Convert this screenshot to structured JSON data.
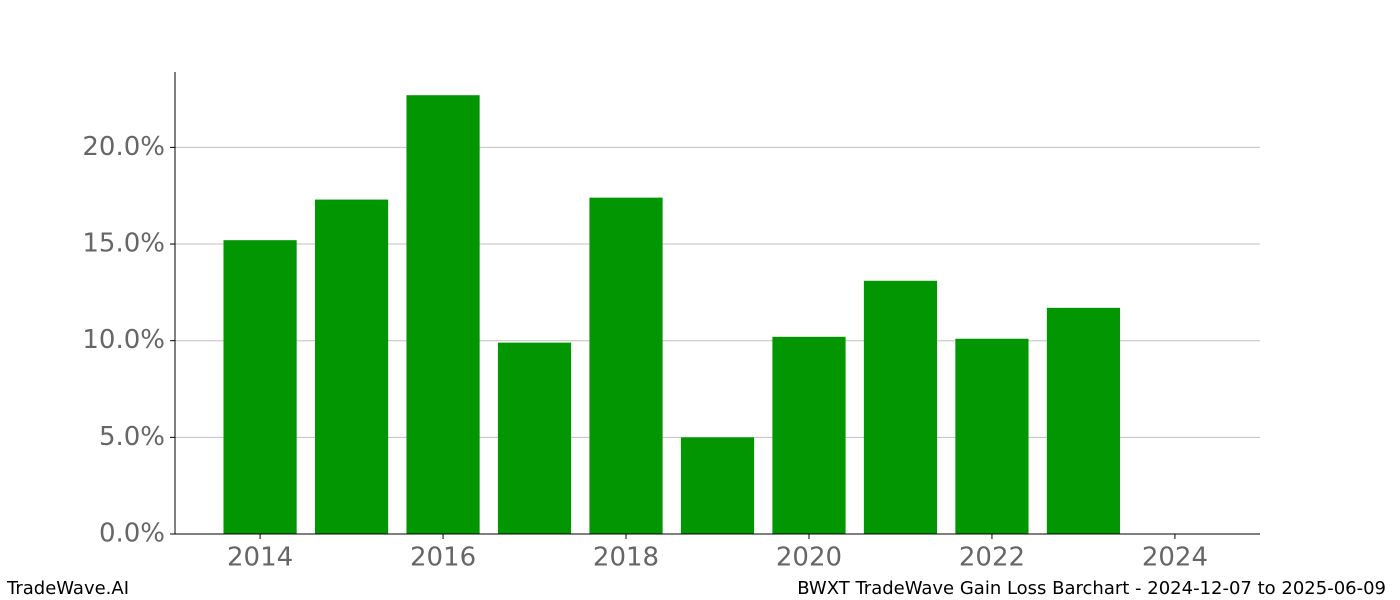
{
  "chart_data": {
    "type": "bar",
    "x": [
      2014,
      2015,
      2016,
      2017,
      2018,
      2019,
      2020,
      2021,
      2022,
      2023
    ],
    "values": [
      15.2,
      17.3,
      22.7,
      9.9,
      17.4,
      5.0,
      10.2,
      13.1,
      10.1,
      11.7
    ],
    "color": "#029702",
    "xlim": [
      2013.07,
      2024.93
    ],
    "xticks": [
      2014,
      2016,
      2018,
      2020,
      2022,
      2024
    ],
    "ylim": [
      0,
      23.9
    ],
    "yticks": [
      {
        "value": 0,
        "label": "0.0%"
      },
      {
        "value": 5,
        "label": "5.0%"
      },
      {
        "value": 10,
        "label": "10.0%"
      },
      {
        "value": 15,
        "label": "15.0%"
      },
      {
        "value": 20,
        "label": "20.0%"
      }
    ],
    "grid": true
  },
  "footer": {
    "left": "TradeWave.AI",
    "right": "BWXT TradeWave Gain Loss Barchart - 2024-12-07 to 2025-06-09"
  }
}
